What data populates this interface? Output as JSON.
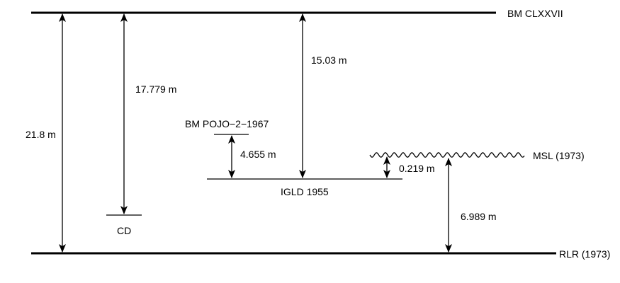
{
  "datums": {
    "bm_clxxvii": "BM CLXXVII",
    "bm_pojo": "BM POJO−2−1967",
    "igld": "IGLD 1955",
    "msl": "MSL (1973)",
    "cd": "CD",
    "rlr": "RLR (1973)"
  },
  "measurements": {
    "total": "21.8 m",
    "bm_to_cd": "17.779 m",
    "bm_to_igld": "15.03 m",
    "pojo_to_igld": "4.655 m",
    "msl_to_igld": "0.219 m",
    "rlr_to_msl": "6.989 m"
  },
  "colors": {
    "line": "#000000",
    "background": "#ffffff"
  }
}
